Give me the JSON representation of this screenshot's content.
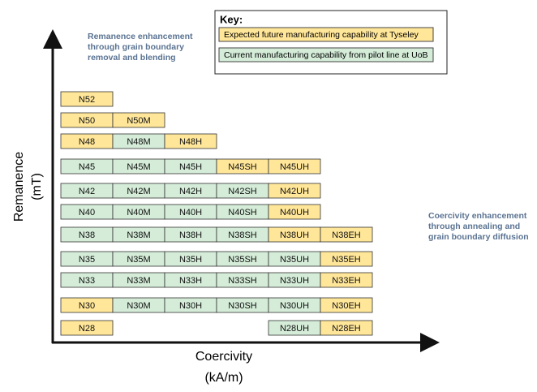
{
  "key": {
    "title": "Key:",
    "items": [
      {
        "label": "Expected future manufacturing capability at Tyseley",
        "color": "#ffe699"
      },
      {
        "label": "Current manufacturing capability from pilot line at UoB",
        "color": "#d4ecd8"
      }
    ]
  },
  "y_axis": {
    "label": "Remanence",
    "unit": "(mT)"
  },
  "x_axis": {
    "label": "Coercivity",
    "unit": "(kA/m)"
  },
  "annotations": [
    {
      "lines": [
        "Remanence enhancement",
        "through grain boundary",
        "removal and blending"
      ]
    },
    {
      "lines": [
        "Coercivity enhancement",
        "through annealing and",
        "grain boundary diffusion"
      ]
    }
  ],
  "rows": [
    [
      {
        "label": "N52",
        "color": "#ffe699"
      },
      null,
      null,
      null,
      null,
      null
    ],
    [
      {
        "label": "N50",
        "color": "#ffe699"
      },
      {
        "label": "N50M",
        "color": "#ffe699"
      },
      null,
      null,
      null,
      null
    ],
    [
      {
        "label": "N48",
        "color": "#ffe699"
      },
      {
        "label": "N48M",
        "color": "#d4ecd8"
      },
      {
        "label": "N48H",
        "color": "#ffe699"
      },
      null,
      null,
      null
    ],
    [
      {
        "label": "N45",
        "color": "#d4ecd8"
      },
      {
        "label": "N45M",
        "color": "#d4ecd8"
      },
      {
        "label": "N45H",
        "color": "#d4ecd8"
      },
      {
        "label": "N45SH",
        "color": "#ffe699"
      },
      {
        "label": "N45UH",
        "color": "#ffe699"
      },
      null
    ],
    [
      {
        "label": "N42",
        "color": "#d4ecd8"
      },
      {
        "label": "N42M",
        "color": "#d4ecd8"
      },
      {
        "label": "N42H",
        "color": "#d4ecd8"
      },
      {
        "label": "N42SH",
        "color": "#d4ecd8"
      },
      {
        "label": "N42UH",
        "color": "#ffe699"
      },
      null
    ],
    [
      {
        "label": "N40",
        "color": "#d4ecd8"
      },
      {
        "label": "N40M",
        "color": "#d4ecd8"
      },
      {
        "label": "N40H",
        "color": "#d4ecd8"
      },
      {
        "label": "N40SH",
        "color": "#d4ecd8"
      },
      {
        "label": "N40UH",
        "color": "#ffe699"
      },
      null
    ],
    [
      {
        "label": "N38",
        "color": "#d4ecd8"
      },
      {
        "label": "N38M",
        "color": "#d4ecd8"
      },
      {
        "label": "N38H",
        "color": "#d4ecd8"
      },
      {
        "label": "N38SH",
        "color": "#d4ecd8"
      },
      {
        "label": "N38UH",
        "color": "#ffe699"
      },
      {
        "label": "N38EH",
        "color": "#ffe699"
      }
    ],
    [
      {
        "label": "N35",
        "color": "#d4ecd8"
      },
      {
        "label": "N35M",
        "color": "#d4ecd8"
      },
      {
        "label": "N35H",
        "color": "#d4ecd8"
      },
      {
        "label": "N35SH",
        "color": "#d4ecd8"
      },
      {
        "label": "N35UH",
        "color": "#d4ecd8"
      },
      {
        "label": "N35EH",
        "color": "#ffe699"
      }
    ],
    [
      {
        "label": "N33",
        "color": "#d4ecd8"
      },
      {
        "label": "N33M",
        "color": "#d4ecd8"
      },
      {
        "label": "N33H",
        "color": "#d4ecd8"
      },
      {
        "label": "N33SH",
        "color": "#d4ecd8"
      },
      {
        "label": "N33UH",
        "color": "#d4ecd8"
      },
      {
        "label": "N33EH",
        "color": "#ffe699"
      }
    ],
    [
      {
        "label": "N30",
        "color": "#ffe699"
      },
      {
        "label": "N30M",
        "color": "#d4ecd8"
      },
      {
        "label": "N30H",
        "color": "#d4ecd8"
      },
      {
        "label": "N30SH",
        "color": "#d4ecd8"
      },
      {
        "label": "N30UH",
        "color": "#d4ecd8"
      },
      {
        "label": "N30EH",
        "color": "#ffe699"
      }
    ],
    [
      {
        "label": "N28",
        "color": "#ffe699"
      },
      null,
      null,
      null,
      {
        "label": "N28UH",
        "color": "#d4ecd8"
      },
      {
        "label": "N28EH",
        "color": "#ffe699"
      }
    ]
  ]
}
